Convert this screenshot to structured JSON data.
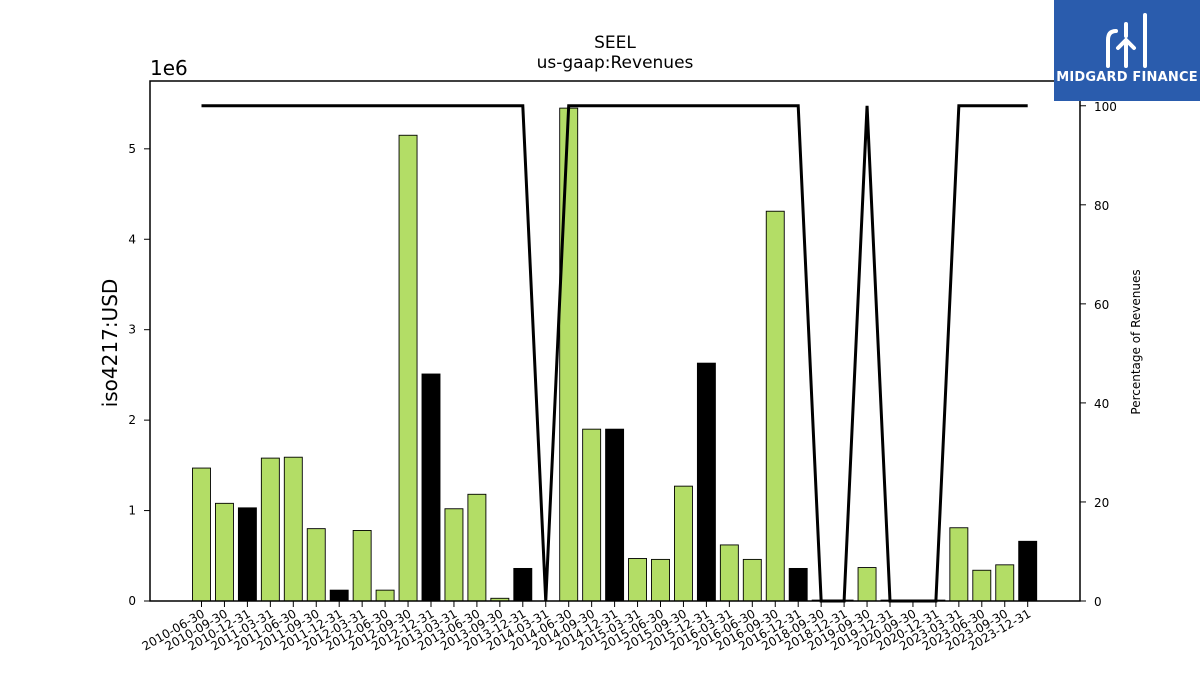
{
  "brand": {
    "name": "MIDGARD FINANCE",
    "logo_bg": "#2a5cad",
    "logo_fg": "#ffffff",
    "icon": "midgard-logo-icon"
  },
  "chart_data": {
    "type": "bar",
    "title": "SEEL",
    "subtitle": "us-gaap:Revenues",
    "ylabel": "iso4217:USD",
    "y2label": "Percentage of Revenues",
    "y_offset_label": "1e6",
    "ylim": [
      0,
      5.75
    ],
    "y_ticks": [
      0,
      1,
      2,
      3,
      4,
      5
    ],
    "y2lim": [
      0,
      105
    ],
    "y2_ticks": [
      0,
      20,
      40,
      60,
      80,
      100
    ],
    "grid": false,
    "colors": {
      "green": "#b3dd66",
      "black": "#000000",
      "line": "#000000",
      "edge": "#000000"
    },
    "categories": [
      "2010-06-30",
      "2010-09-30",
      "2010-12-31",
      "2011-03-31",
      "2011-06-30",
      "2011-09-30",
      "2011-12-31",
      "2012-03-31",
      "2012-06-30",
      "2012-09-30",
      "2012-12-31",
      "2013-03-31",
      "2013-06-30",
      "2013-09-30",
      "2013-12-31",
      "2014-03-31",
      "2014-06-30",
      "2014-09-30",
      "2014-12-31",
      "2015-03-31",
      "2015-06-30",
      "2015-09-30",
      "2015-12-31",
      "2016-03-31",
      "2016-06-30",
      "2016-09-30",
      "2016-12-31",
      "2018-09-30",
      "2018-12-31",
      "2019-09-30",
      "2019-12-31",
      "2020-09-30",
      "2020-12-31",
      "2023-03-31",
      "2023-06-30",
      "2023-09-30",
      "2023-12-31"
    ],
    "series": [
      {
        "values": [
          1.47,
          1.08,
          1.03,
          1.58,
          1.59,
          0.8,
          0.12,
          0.78,
          0.12,
          5.15,
          2.51,
          1.02,
          1.18,
          0.03,
          0.36,
          0,
          5.45,
          1.9,
          1.9,
          0.47,
          0.46,
          1.27,
          2.63,
          0.62,
          0.46,
          4.31,
          0.36,
          0.01,
          0.01,
          0.37,
          0.01,
          0.01,
          0.01,
          0.81,
          0.34,
          0.4,
          0.66
        ],
        "bar_colors": [
          "green",
          "green",
          "black",
          "green",
          "green",
          "green",
          "black",
          "green",
          "green",
          "green",
          "black",
          "green",
          "green",
          "green",
          "black",
          "green",
          "green",
          "green",
          "black",
          "green",
          "green",
          "green",
          "black",
          "green",
          "green",
          "green",
          "black",
          "green",
          "black",
          "green",
          "black",
          "green",
          "black",
          "green",
          "green",
          "green",
          "black"
        ]
      },
      {
        "axis": "right",
        "type": "line",
        "values": [
          100,
          100,
          100,
          100,
          100,
          100,
          100,
          100,
          100,
          100,
          100,
          100,
          100,
          100,
          100,
          0,
          100,
          100,
          100,
          100,
          100,
          100,
          100,
          100,
          100,
          100,
          100,
          0,
          0,
          100,
          0,
          0,
          0,
          100,
          100,
          100,
          100
        ]
      }
    ]
  }
}
